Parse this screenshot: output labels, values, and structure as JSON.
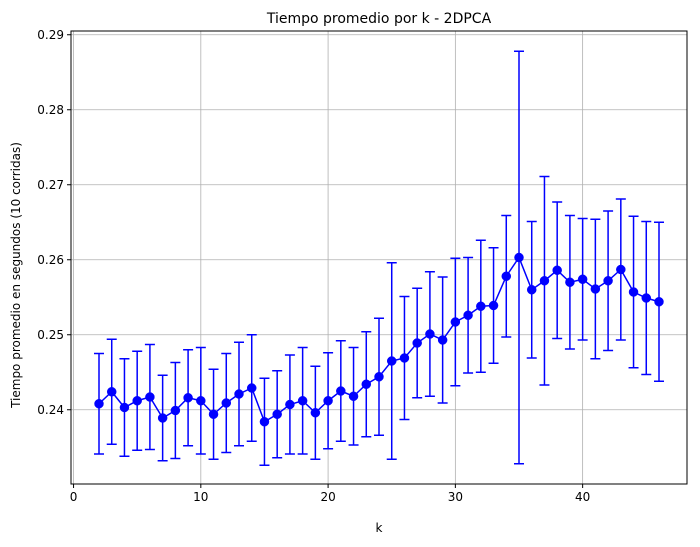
{
  "chart_data": {
    "type": "line",
    "title": "Tiempo promedio por k - 2DPCA",
    "xlabel": "k",
    "ylabel": "Tiempo promedio en segundos (10 corridas)",
    "xlim": [
      -0.2,
      48.2
    ],
    "ylim": [
      0.2301,
      0.2905
    ],
    "xticks": [
      0,
      10,
      20,
      30,
      40
    ],
    "yticks": [
      0.24,
      0.25,
      0.26,
      0.27,
      0.28,
      0.29
    ],
    "grid": true,
    "error_bars": true,
    "series_color": "#0000ff",
    "series": [
      {
        "x": [
          2,
          3,
          4,
          5,
          6,
          7,
          8,
          9,
          10,
          11,
          12,
          13,
          14,
          15,
          16,
          17,
          18,
          19,
          20,
          21,
          22,
          23,
          24,
          25,
          26,
          27,
          28,
          29,
          30,
          31,
          32,
          33,
          34,
          35,
          36,
          37,
          38,
          39,
          40,
          41,
          42,
          43,
          44,
          45,
          46
        ],
        "y": [
          0.2408,
          0.2424,
          0.2403,
          0.2412,
          0.2417,
          0.2389,
          0.2399,
          0.2416,
          0.2412,
          0.2394,
          0.2409,
          0.2421,
          0.2429,
          0.2384,
          0.2394,
          0.2407,
          0.2412,
          0.2396,
          0.2412,
          0.2425,
          0.2418,
          0.2434,
          0.2444,
          0.2465,
          0.2469,
          0.2489,
          0.2501,
          0.2493,
          0.2517,
          0.2526,
          0.2538,
          0.2539,
          0.2578,
          0.2603,
          0.256,
          0.2572,
          0.2586,
          0.257,
          0.2574,
          0.2561,
          0.2572,
          0.2587,
          0.2557,
          0.2549,
          0.2544
        ],
        "yerr": [
          0.0067,
          0.007,
          0.0065,
          0.0066,
          0.007,
          0.0057,
          0.0064,
          0.0064,
          0.0071,
          0.006,
          0.0066,
          0.0069,
          0.0071,
          0.0058,
          0.0058,
          0.0066,
          0.0071,
          0.0062,
          0.0064,
          0.0067,
          0.0065,
          0.007,
          0.0078,
          0.0131,
          0.0082,
          0.0073,
          0.0083,
          0.0084,
          0.0085,
          0.0077,
          0.0088,
          0.0077,
          0.0081,
          0.0275,
          0.0091,
          0.0139,
          0.0091,
          0.0089,
          0.0081,
          0.0093,
          0.0093,
          0.0094,
          0.0101,
          0.0102,
          0.0106
        ]
      }
    ]
  }
}
